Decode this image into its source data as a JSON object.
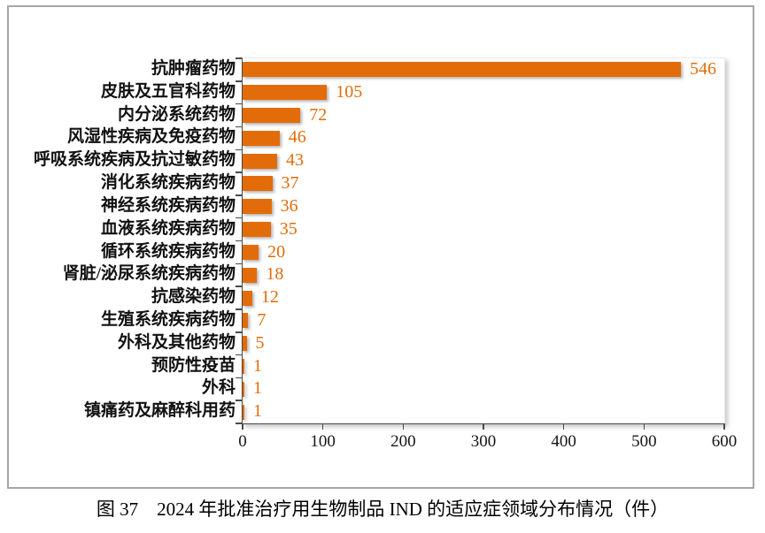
{
  "caption": "图 37　2024 年批准治疗用生物制品 IND 的适应症领域分布情况（件）",
  "chart_data": {
    "type": "bar",
    "orientation": "horizontal",
    "title": "",
    "xlabel": "",
    "ylabel": "",
    "categories": [
      "抗肿瘤药物",
      "皮肤及五官科药物",
      "内分泌系统药物",
      "风湿性疾病及免疫药物",
      "呼吸系统疾病及抗过敏药物",
      "消化系统疾病药物",
      "神经系统疾病药物",
      "血液系统疾病药物",
      "循环系统疾病药物",
      "肾脏/泌尿系统疾病药物",
      "抗感染药物",
      "生殖系统疾病药物",
      "外科及其他药物",
      "预防性疫苗",
      "外科",
      "镇痛药及麻醉科用药"
    ],
    "values": [
      546,
      105,
      72,
      46,
      43,
      37,
      36,
      35,
      20,
      18,
      12,
      7,
      5,
      1,
      1,
      1
    ],
    "data_labels": [
      546,
      105,
      72,
      46,
      43,
      37,
      36,
      35,
      20,
      18,
      12,
      7,
      5,
      1,
      1,
      1
    ],
    "x_ticks": [
      0,
      100,
      200,
      300,
      400,
      500,
      600
    ],
    "xlim": [
      0,
      600
    ],
    "grid": false,
    "legend": false,
    "bar_color": "#E36C0A",
    "value_label_color": "#E36C0A"
  }
}
